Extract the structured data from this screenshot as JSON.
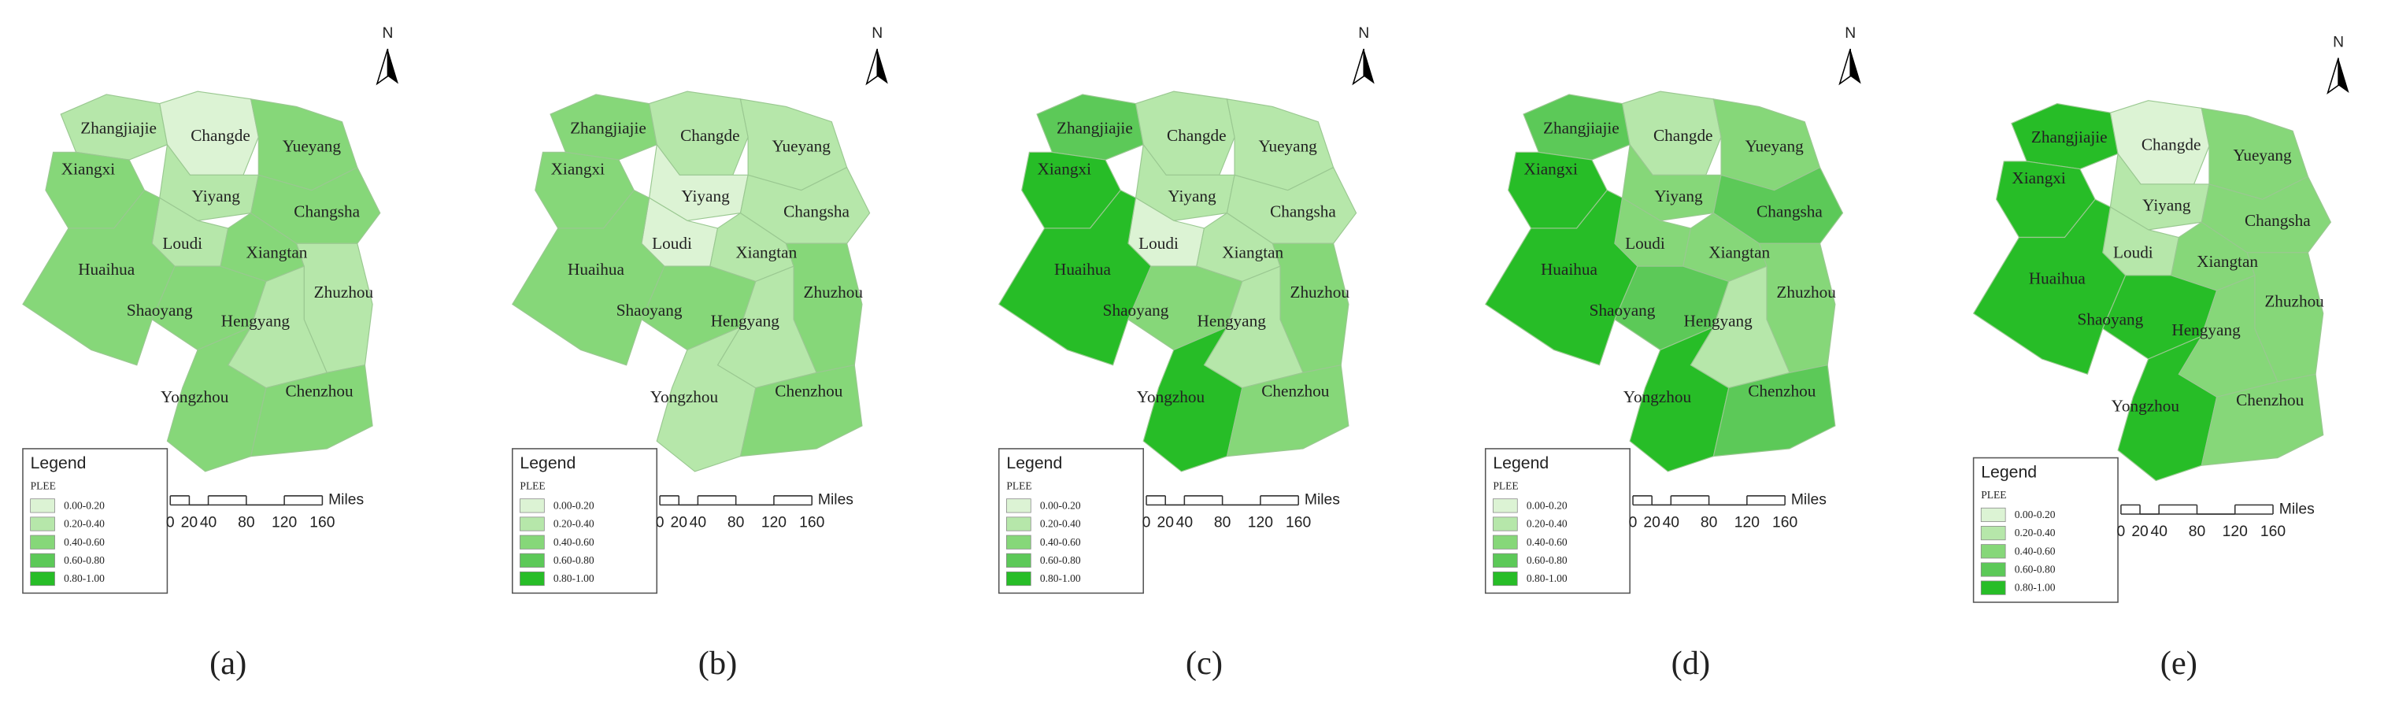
{
  "north": "N",
  "legend": {
    "title": "Legend",
    "field": "PLEE",
    "classes": [
      {
        "label": "0.00-0.20",
        "color": "#dcf3d4"
      },
      {
        "label": "0.20-0.40",
        "color": "#b6e7aa"
      },
      {
        "label": "0.40-0.60",
        "color": "#86d779"
      },
      {
        "label": "0.60-0.80",
        "color": "#5cc958"
      },
      {
        "label": "0.80-1.00",
        "color": "#27bd27"
      }
    ]
  },
  "scale": {
    "ticks": [
      0,
      20,
      40,
      80,
      120,
      160
    ],
    "unit": "Miles"
  },
  "cities": [
    "Zhangjiajie",
    "Changde",
    "Yueyang",
    "Xiangxi",
    "Yiyang",
    "Changsha",
    "Loudi",
    "Xiangtan",
    "Huaihua",
    "Zhuzhou",
    "Shaoyang",
    "Hengyang",
    "Yongzhou",
    "Chenzhou"
  ],
  "panels": [
    {
      "label": "(a)",
      "classes": [
        1,
        0,
        2,
        2,
        1,
        2,
        1,
        2,
        2,
        1,
        2,
        1,
        2,
        2
      ]
    },
    {
      "label": "(b)",
      "classes": [
        2,
        1,
        1,
        2,
        0,
        1,
        0,
        1,
        2,
        2,
        2,
        1,
        1,
        2
      ]
    },
    {
      "label": "(c)",
      "classes": [
        3,
        1,
        1,
        4,
        1,
        1,
        0,
        1,
        4,
        2,
        2,
        1,
        4,
        2
      ]
    },
    {
      "label": "(d)",
      "classes": [
        3,
        1,
        2,
        4,
        2,
        3,
        2,
        2,
        4,
        2,
        3,
        1,
        4,
        3
      ]
    },
    {
      "label": "(e)",
      "classes": [
        4,
        0,
        2,
        4,
        1,
        2,
        1,
        2,
        4,
        2,
        4,
        2,
        4,
        2
      ]
    }
  ]
}
